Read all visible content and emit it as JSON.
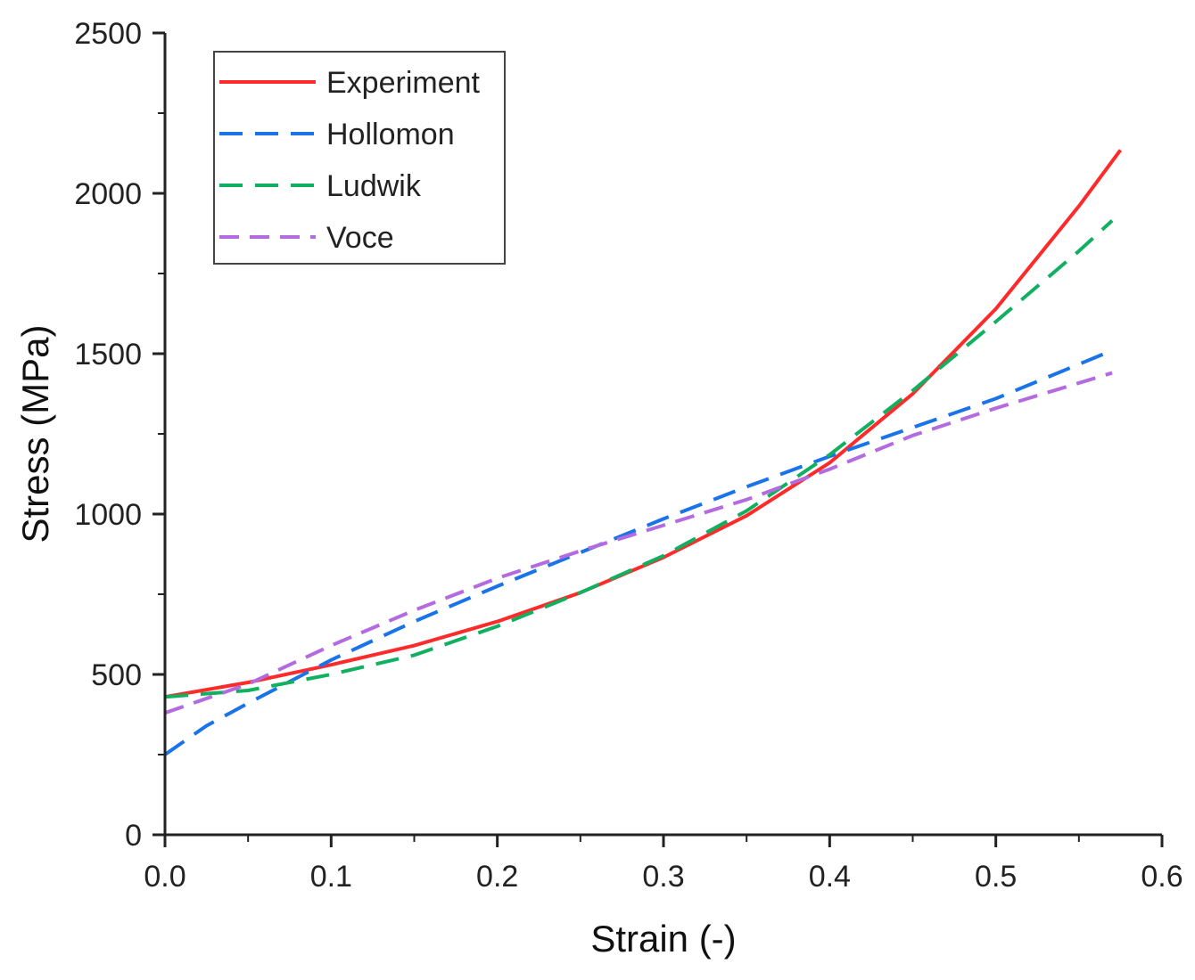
{
  "chart_data": {
    "type": "line",
    "title": "",
    "xlabel": "Strain (-)",
    "ylabel": "Stress (MPa)",
    "xlim": [
      0.0,
      0.6
    ],
    "ylim": [
      0,
      2500
    ],
    "xticks": [
      "0.0",
      "0.1",
      "0.2",
      "0.3",
      "0.4",
      "0.5",
      "0.6"
    ],
    "yticks": [
      "0",
      "500",
      "1000",
      "1500",
      "2000",
      "2500"
    ],
    "grid": false,
    "legend_position": "top-left",
    "series": [
      {
        "name": "Experiment",
        "color": "#ff2a2a",
        "dash": "solid",
        "x": [
          0.0,
          0.05,
          0.1,
          0.15,
          0.2,
          0.25,
          0.3,
          0.35,
          0.4,
          0.45,
          0.5,
          0.55,
          0.575
        ],
        "y": [
          430,
          475,
          530,
          590,
          665,
          755,
          865,
          995,
          1160,
          1375,
          1640,
          1960,
          2135
        ]
      },
      {
        "name": "Hollomon",
        "color": "#1a73e8",
        "dash": "dashed",
        "x": [
          0.0,
          0.025,
          0.05,
          0.1,
          0.15,
          0.2,
          0.25,
          0.3,
          0.35,
          0.4,
          0.45,
          0.5,
          0.57
        ],
        "y": [
          250,
          340,
          410,
          545,
          665,
          775,
          880,
          985,
          1085,
          1180,
          1270,
          1360,
          1510
        ]
      },
      {
        "name": "Ludwik",
        "color": "#10b060",
        "dash": "dashed",
        "x": [
          0.0,
          0.05,
          0.1,
          0.15,
          0.2,
          0.25,
          0.3,
          0.35,
          0.4,
          0.45,
          0.5,
          0.55,
          0.57
        ],
        "y": [
          430,
          450,
          500,
          560,
          650,
          755,
          870,
          1010,
          1185,
          1385,
          1600,
          1820,
          1915
        ]
      },
      {
        "name": "Voce",
        "color": "#b46be0",
        "dash": "dashed",
        "x": [
          0.0,
          0.05,
          0.1,
          0.15,
          0.2,
          0.25,
          0.3,
          0.35,
          0.4,
          0.45,
          0.5,
          0.57
        ],
        "y": [
          380,
          470,
          590,
          700,
          800,
          885,
          965,
          1045,
          1140,
          1245,
          1330,
          1440
        ]
      }
    ]
  }
}
